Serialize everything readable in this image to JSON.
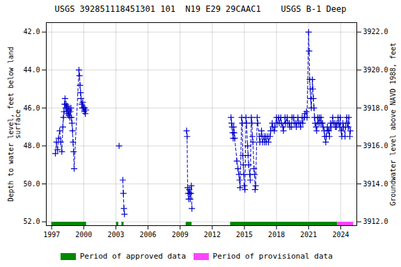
{
  "chart_data": {
    "type": "line",
    "title": "USGS 392851118451301 101  N19 E29 29CAAC1    USGS B-1 Deep",
    "ylabel": "Depth to water level, feet below land\nsurface",
    "y2label": "Groundwater level above NAVD 1988, feet",
    "xlim": [
      1996.5,
      2025.5
    ],
    "xticks": [
      1997,
      2000,
      2003,
      2006,
      2009,
      2012,
      2015,
      2018,
      2021,
      2024
    ],
    "ylim": [
      52.2,
      41.5
    ],
    "yticks": [
      {
        "value": 42.0,
        "label": "42.0"
      },
      {
        "value": 44.0,
        "label": "44.0"
      },
      {
        "value": 46.0,
        "label": "46.0"
      },
      {
        "value": 48.0,
        "label": "48.0"
      },
      {
        "value": 50.0,
        "label": "50.0"
      },
      {
        "value": 52.0,
        "label": "52.0"
      }
    ],
    "y2lim": [
      3911.8,
      3922.5
    ],
    "y2ticks": [
      {
        "value": 3912.0,
        "label": "3912.0"
      },
      {
        "value": 3914.0,
        "label": "3914.0"
      },
      {
        "value": 3916.0,
        "label": "3916.0"
      },
      {
        "value": 3918.0,
        "label": "3918.0"
      },
      {
        "value": 3920.0,
        "label": "3920.0"
      },
      {
        "value": 3922.0,
        "label": "3922.0"
      }
    ],
    "grid": true,
    "x": [
      1997.35,
      1997.45,
      1997.55,
      1997.65,
      1997.75,
      1997.85,
      1997.95,
      1998.05,
      1998.1,
      1998.15,
      1998.2,
      1998.25,
      1998.3,
      1998.35,
      1998.4,
      1998.45,
      1998.5,
      1998.55,
      1998.6,
      1998.65,
      1998.7,
      1998.75,
      1998.8,
      1998.85,
      1998.9,
      1998.95,
      1999.0,
      1999.05,
      1999.1,
      1999.55,
      1999.6,
      1999.65,
      1999.7,
      1999.75,
      1999.8,
      1999.85,
      1999.9,
      1999.95,
      2000.0,
      2000.05,
      2000.1,
      2000.15,
      2000.2,
      null,
      2003.3,
      null,
      2003.65,
      2003.7,
      2003.75,
      2003.8,
      null,
      2009.6,
      2009.65,
      2009.7,
      2009.75,
      2009.8,
      2009.85,
      2009.9,
      2009.95,
      2010.0,
      2010.05,
      2010.1,
      null,
      2013.75,
      2013.8,
      2013.85,
      2013.9,
      2013.95,
      2014.0,
      2014.05,
      2014.1,
      2014.3,
      2014.4,
      2014.5,
      2014.55,
      2014.6,
      2014.75,
      2014.8,
      2014.85,
      2014.9,
      2014.95,
      2015.0,
      2015.05,
      2015.15,
      2015.2,
      2015.3,
      2015.35,
      2015.4,
      2015.5,
      2015.55,
      2015.65,
      2015.7,
      2015.75,
      2015.8,
      2015.9,
      2015.95,
      2016.0,
      2016.05,
      2016.2,
      2016.25,
      2016.4,
      2016.45,
      2016.6,
      2016.65,
      2016.7,
      2016.85,
      2016.9,
      2017.0,
      2017.05,
      2017.2,
      2017.25,
      2017.4,
      2017.45,
      2017.6,
      2017.65,
      2017.8,
      2017.85,
      2018.0,
      2018.05,
      2018.2,
      2018.25,
      2018.4,
      2018.45,
      2018.6,
      2018.65,
      2018.8,
      2018.85,
      2019.0,
      2019.05,
      2019.2,
      2019.25,
      2019.4,
      2019.45,
      2019.6,
      2019.65,
      2019.8,
      2019.85,
      2020.0,
      2020.05,
      2020.2,
      2020.25,
      2020.4,
      2020.45,
      2020.6,
      2020.65,
      2020.8,
      2020.85,
      2021.0,
      2021.05,
      2021.1,
      2021.15,
      2021.2,
      2021.25,
      2021.35,
      2021.4,
      2021.45,
      2021.5,
      2021.55,
      2021.6,
      2021.7,
      2021.75,
      2021.85,
      2021.9,
      2022.0,
      2022.05,
      2022.15,
      2022.2,
      2022.3,
      2022.35,
      2022.45,
      2022.5,
      2022.6,
      2022.65,
      2022.75,
      2022.8,
      2022.9,
      2022.95,
      2023.05,
      2023.1,
      2023.25,
      2023.3,
      2023.45,
      2023.5,
      2023.6,
      2023.65,
      null,
      2023.75,
      2023.8,
      2023.9,
      2023.95,
      2024.05,
      2024.1,
      2024.2,
      2024.25,
      2024.4,
      2024.45,
      2024.55,
      2024.6,
      2024.7,
      2024.75,
      2024.85,
      2024.9
    ],
    "series": [
      {
        "color": "#0000cc",
        "marker": "plus",
        "line_style": "dashed",
        "values": [
          48.4,
          47.8,
          48.2,
          47.6,
          47.2,
          47.8,
          48.3,
          47.0,
          46.5,
          46.2,
          45.8,
          45.5,
          46.0,
          45.8,
          46.2,
          45.9,
          46.3,
          46.0,
          46.4,
          46.1,
          46.5,
          46.2,
          46.0,
          46.5,
          46.8,
          47.2,
          47.8,
          48.3,
          49.2,
          44.0,
          44.3,
          44.8,
          45.2,
          45.5,
          45.8,
          46.0,
          45.7,
          46.0,
          46.0,
          46.2,
          46.0,
          46.3,
          46.1,
          null,
          48.0,
          null,
          49.8,
          50.5,
          51.3,
          51.6,
          null,
          47.2,
          47.5,
          50.2,
          50.5,
          50.8,
          50.3,
          50.5,
          50.8,
          50.5,
          50.1,
          51.3,
          null,
          46.5,
          46.8,
          47.0,
          47.3,
          47.6,
          47.0,
          47.3,
          47.6,
          48.8,
          49.2,
          49.5,
          49.8,
          50.2,
          46.5,
          46.8,
          48.5,
          49.0,
          49.5,
          50.1,
          50.3,
          46.5,
          46.8,
          48.0,
          48.5,
          49.0,
          49.5,
          49.8,
          46.5,
          46.8,
          47.5,
          47.8,
          49.2,
          49.5,
          50.3,
          50.1,
          46.5,
          46.8,
          47.5,
          47.8,
          47.2,
          47.5,
          47.8,
          47.5,
          47.8,
          47.5,
          47.8,
          47.5,
          47.8,
          47.5,
          47.2,
          46.8,
          47.0,
          47.2,
          47.0,
          46.5,
          46.8,
          46.5,
          46.8,
          46.5,
          46.8,
          47.0,
          47.2,
          46.5,
          46.8,
          46.5,
          46.8,
          46.8,
          47.0,
          47.0,
          46.5,
          46.5,
          46.8,
          46.8,
          47.0,
          46.5,
          46.8,
          46.8,
          47.0,
          46.5,
          46.8,
          46.5,
          46.3,
          46.2,
          46.5,
          42.0,
          43.0,
          44.5,
          45.0,
          45.5,
          46.0,
          44.5,
          45.0,
          45.5,
          46.0,
          46.5,
          46.8,
          47.0,
          47.2,
          46.5,
          46.8,
          46.5,
          46.8,
          46.5,
          46.8,
          46.8,
          47.0,
          47.2,
          47.5,
          47.8,
          47.5,
          47.0,
          47.2,
          47.2,
          47.5,
          46.8,
          47.0,
          46.5,
          46.8,
          46.8,
          47.0,
          47.0,
          46.8,
          null,
          46.5,
          46.8,
          47.0,
          46.5,
          47.2,
          47.5,
          46.8,
          47.0,
          47.5,
          47.0,
          46.5,
          46.8,
          47.0,
          46.5,
          47.5,
          47.2
        ]
      }
    ],
    "periods": [
      {
        "name": "Period of approved data",
        "color": "#008800",
        "ranges": [
          [
            1997.0,
            2000.25
          ],
          [
            2003.05,
            2003.25
          ],
          [
            2003.55,
            2003.75
          ],
          [
            2009.55,
            2010.1
          ],
          [
            2013.7,
            2023.7
          ]
        ]
      },
      {
        "name": "Period of provisional data",
        "color": "#ff44ff",
        "ranges": [
          [
            2023.7,
            2025.2
          ]
        ]
      }
    ]
  }
}
